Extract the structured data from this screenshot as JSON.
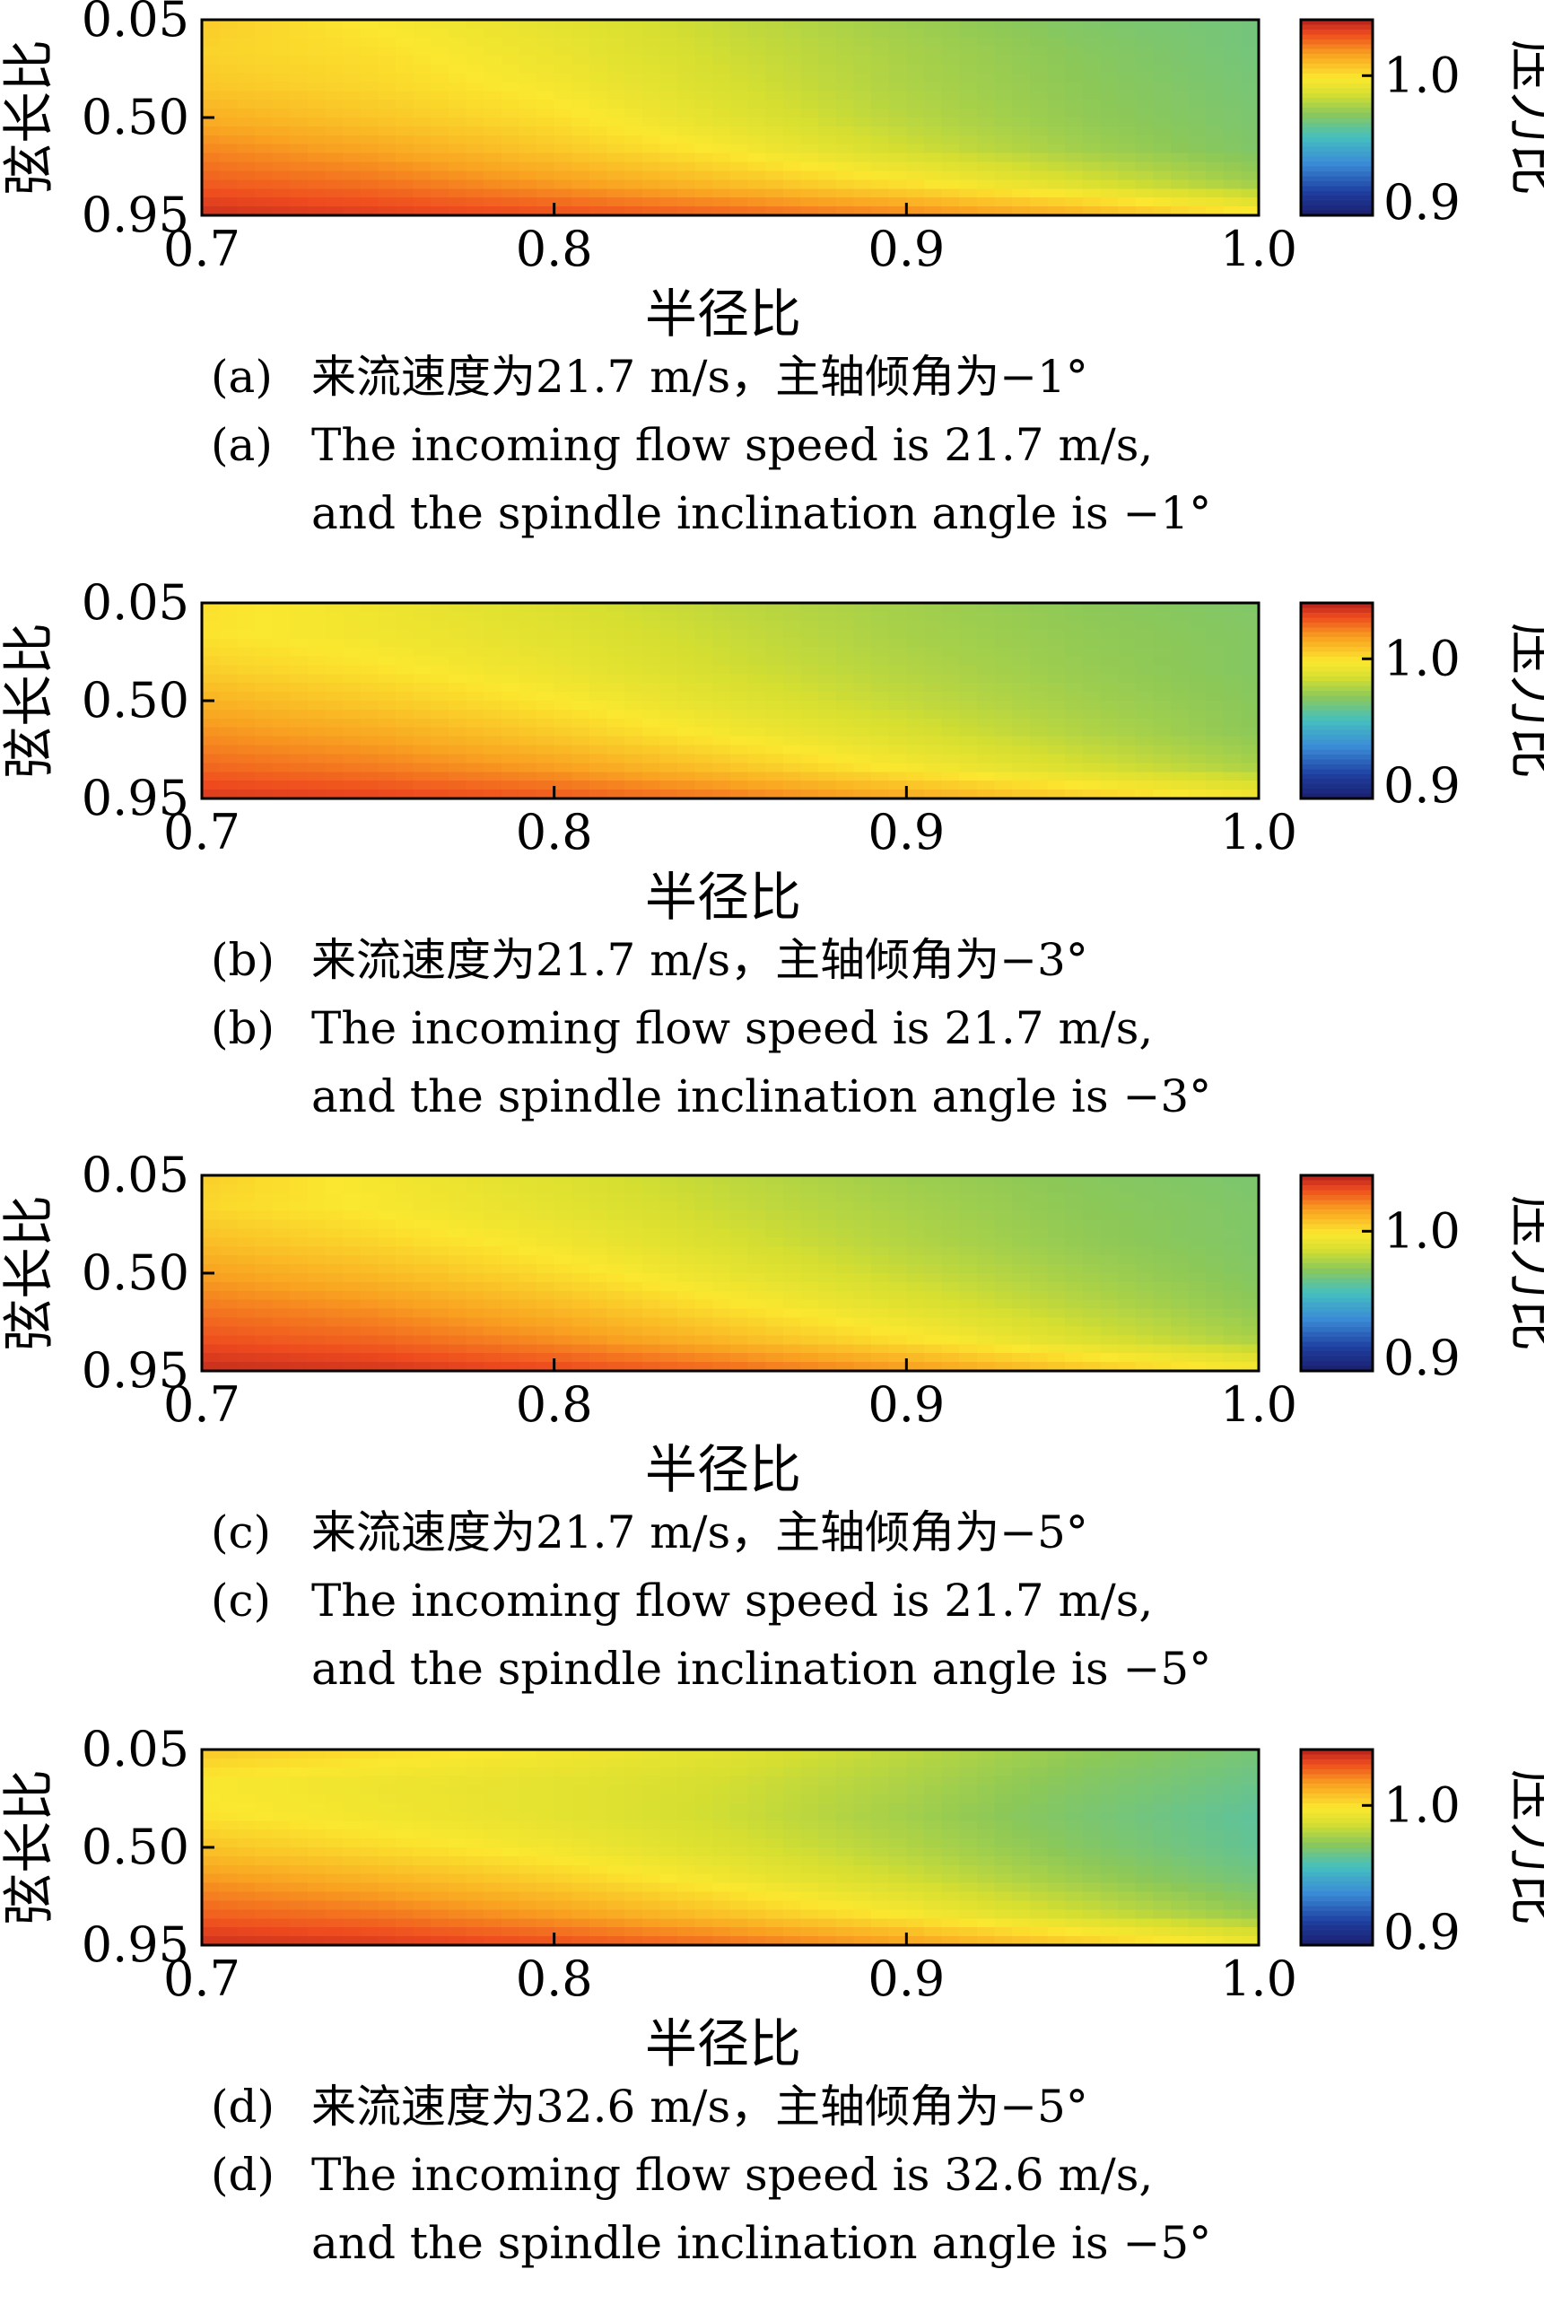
{
  "figure": {
    "panels": [
      {
        "tag": "(a)",
        "caption_zh": "来流速度为21.7 m/s，主轴倾角为−1°",
        "caption_en_line1": "The incoming flow speed is 21.7 m/s,",
        "caption_en_line2": "and the spindle inclination angle is −1°"
      },
      {
        "tag": "(b)",
        "caption_zh": "来流速度为21.7 m/s，主轴倾角为−3°",
        "caption_en_line1": "The incoming flow speed is 21.7 m/s,",
        "caption_en_line2": "and the spindle inclination angle is −3°"
      },
      {
        "tag": "(c)",
        "caption_zh": "来流速度为21.7 m/s，主轴倾角为−5°",
        "caption_en_line1": "The incoming flow speed is 21.7 m/s,",
        "caption_en_line2": "and the spindle inclination angle is −5°"
      },
      {
        "tag": "(d)",
        "caption_zh": "来流速度为32.6 m/s，主轴倾角为−5°",
        "caption_en_line1": "The incoming flow speed is 32.6 m/s,",
        "caption_en_line2": "and the spindle inclination angle is −5°"
      }
    ]
  },
  "chart_data": [
    {
      "type": "heatmap",
      "panel": "(a)",
      "xlabel": "半径比",
      "ylabel": "弦长比",
      "colorbar_label": "压力比",
      "xlim": [
        0.7,
        1.0
      ],
      "ylim": [
        0.05,
        0.95
      ],
      "y_inverted": true,
      "xticks": [
        "0.7",
        "0.8",
        "0.9",
        "1.0"
      ],
      "yticks": [
        "0.05",
        "0.50",
        "0.95"
      ],
      "colorbar_range": [
        0.9,
        1.04
      ],
      "colorbar_ticks": [
        "1.0",
        "0.9"
      ],
      "x": [
        0.7,
        0.75,
        0.8,
        0.85,
        0.9,
        0.95,
        1.0
      ],
      "y": [
        0.05,
        0.2,
        0.35,
        0.5,
        0.65,
        0.8,
        0.95
      ],
      "z": [
        [
          1.005,
          0.997,
          0.991,
          0.983,
          0.976,
          0.97,
          0.967
        ],
        [
          1.003,
          1.0,
          0.993,
          0.985,
          0.978,
          0.972,
          0.967
        ],
        [
          1.006,
          1.002,
          0.996,
          0.987,
          0.979,
          0.973,
          0.968
        ],
        [
          1.012,
          1.006,
          1.0,
          0.99,
          0.981,
          0.974,
          0.969
        ],
        [
          1.02,
          1.014,
          1.006,
          0.997,
          0.986,
          0.977,
          0.97
        ],
        [
          1.027,
          1.023,
          1.016,
          1.008,
          0.999,
          0.988,
          0.976
        ],
        [
          1.036,
          1.033,
          1.03,
          1.026,
          1.02,
          1.012,
          1.0
        ]
      ]
    },
    {
      "type": "heatmap",
      "panel": "(b)",
      "xlabel": "半径比",
      "ylabel": "弦长比",
      "colorbar_label": "压力比",
      "xlim": [
        0.7,
        1.0
      ],
      "ylim": [
        0.05,
        0.95
      ],
      "y_inverted": true,
      "xticks": [
        "0.7",
        "0.8",
        "0.9",
        "1.0"
      ],
      "yticks": [
        "0.05",
        "0.50",
        "0.95"
      ],
      "colorbar_range": [
        0.9,
        1.04
      ],
      "colorbar_ticks": [
        "1.0",
        "0.9"
      ],
      "x": [
        0.7,
        0.75,
        0.8,
        0.85,
        0.9,
        0.95,
        1.0
      ],
      "y": [
        0.05,
        0.2,
        0.35,
        0.5,
        0.65,
        0.8,
        0.95
      ],
      "z": [
        [
          1.0,
          0.994,
          0.988,
          0.982,
          0.977,
          0.973,
          0.97
        ],
        [
          0.999,
          0.995,
          0.99,
          0.984,
          0.978,
          0.974,
          0.971
        ],
        [
          1.004,
          0.999,
          0.993,
          0.986,
          0.98,
          0.975,
          0.971
        ],
        [
          1.011,
          1.005,
          0.998,
          0.99,
          0.983,
          0.977,
          0.972
        ],
        [
          1.018,
          1.013,
          1.005,
          0.996,
          0.988,
          0.98,
          0.973
        ],
        [
          1.025,
          1.021,
          1.015,
          1.006,
          0.996,
          0.987,
          0.978
        ],
        [
          1.034,
          1.032,
          1.028,
          1.022,
          1.014,
          1.005,
          0.996
        ]
      ]
    },
    {
      "type": "heatmap",
      "panel": "(c)",
      "xlabel": "半径比",
      "ylabel": "弦长比",
      "colorbar_label": "压力比",
      "xlim": [
        0.7,
        1.0
      ],
      "ylim": [
        0.05,
        0.95
      ],
      "y_inverted": true,
      "xticks": [
        "0.7",
        "0.8",
        "0.9",
        "1.0"
      ],
      "yticks": [
        "0.05",
        "0.50",
        "0.95"
      ],
      "colorbar_range": [
        0.9,
        1.04
      ],
      "colorbar_ticks": [
        "1.0",
        "0.9"
      ],
      "x": [
        0.7,
        0.75,
        0.8,
        0.85,
        0.9,
        0.95,
        1.0
      ],
      "y": [
        0.05,
        0.2,
        0.35,
        0.5,
        0.65,
        0.8,
        0.95
      ],
      "z": [
        [
          1.004,
          0.996,
          0.989,
          0.982,
          0.976,
          0.972,
          0.969
        ],
        [
          1.002,
          0.997,
          0.991,
          0.984,
          0.978,
          0.973,
          0.97
        ],
        [
          1.008,
          1.002,
          0.995,
          0.987,
          0.98,
          0.974,
          0.97
        ],
        [
          1.015,
          1.009,
          1.001,
          0.992,
          0.984,
          0.977,
          0.971
        ],
        [
          1.022,
          1.017,
          1.009,
          0.999,
          0.99,
          0.981,
          0.973
        ],
        [
          1.029,
          1.025,
          1.018,
          1.009,
          0.999,
          0.988,
          0.978
        ],
        [
          1.037,
          1.035,
          1.031,
          1.025,
          1.017,
          1.007,
          0.997
        ]
      ]
    },
    {
      "type": "heatmap",
      "panel": "(d)",
      "xlabel": "半径比",
      "ylabel": "弦长比",
      "colorbar_label": "压力比",
      "xlim": [
        0.7,
        1.0
      ],
      "ylim": [
        0.05,
        0.95
      ],
      "y_inverted": true,
      "xticks": [
        "0.7",
        "0.8",
        "0.9",
        "1.0"
      ],
      "yticks": [
        "0.05",
        "0.50",
        "0.95"
      ],
      "colorbar_range": [
        0.9,
        1.04
      ],
      "colorbar_ticks": [
        "1.0",
        "0.9"
      ],
      "x": [
        0.7,
        0.75,
        0.8,
        0.85,
        0.9,
        0.95,
        1.0
      ],
      "y": [
        0.05,
        0.2,
        0.35,
        0.5,
        0.65,
        0.8,
        0.95
      ],
      "z": [
        [
          1.006,
          1.001,
          0.996,
          0.99,
          0.982,
          0.974,
          0.968
        ],
        [
          0.997,
          0.994,
          0.991,
          0.986,
          0.979,
          0.971,
          0.965
        ],
        [
          0.999,
          0.995,
          0.991,
          0.985,
          0.977,
          0.969,
          0.962
        ],
        [
          1.007,
          1.001,
          0.995,
          0.988,
          0.98,
          0.971,
          0.963
        ],
        [
          1.017,
          1.011,
          1.004,
          0.995,
          0.986,
          0.976,
          0.967
        ],
        [
          1.026,
          1.022,
          1.015,
          1.006,
          0.996,
          0.985,
          0.974
        ],
        [
          1.036,
          1.034,
          1.03,
          1.024,
          1.016,
          1.006,
          0.995
        ]
      ]
    }
  ]
}
